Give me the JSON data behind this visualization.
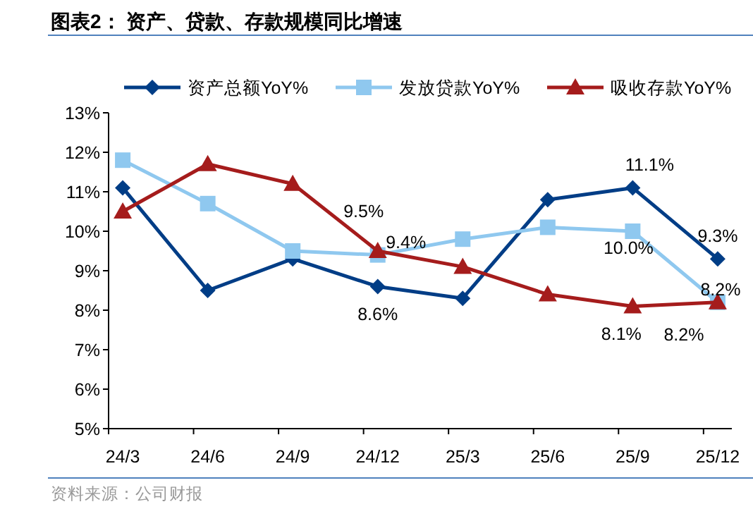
{
  "chart_data": {
    "type": "line",
    "title": "图表2：  资产、贷款、存款规模同比增速",
    "categories": [
      "24/3",
      "24/6",
      "24/9",
      "24/12",
      "25/3",
      "25/6",
      "25/9",
      "25/12"
    ],
    "series": [
      {
        "name": "资产总额YoY%",
        "color": "#003d86",
        "marker": "diamond",
        "values": [
          11.1,
          8.5,
          9.3,
          8.6,
          8.3,
          10.8,
          11.1,
          9.3
        ],
        "value_labels": [
          null,
          null,
          null,
          "8.6%",
          null,
          null,
          "11.1%",
          "9.3%"
        ]
      },
      {
        "name": "发放贷款YoY%",
        "color": "#8fc8ef",
        "marker": "square",
        "values": [
          11.8,
          10.7,
          9.5,
          9.4,
          9.8,
          10.1,
          10.0,
          8.2
        ],
        "value_labels": [
          null,
          null,
          null,
          "9.4%",
          null,
          null,
          "10.0%",
          "8.2%"
        ]
      },
      {
        "name": "吸收存款YoY%",
        "color": "#a51c1c",
        "marker": "triangle",
        "values": [
          10.5,
          11.7,
          11.2,
          9.5,
          9.1,
          8.4,
          8.1,
          8.2
        ],
        "value_labels": [
          null,
          null,
          null,
          "9.5%",
          null,
          null,
          "8.1%",
          "8.2%"
        ]
      }
    ],
    "ylim": [
      5,
      13
    ],
    "yticks": [
      {
        "value": 5,
        "label": "5%"
      },
      {
        "value": 6,
        "label": "6%"
      },
      {
        "value": 7,
        "label": "7%"
      },
      {
        "value": 8,
        "label": "8%"
      },
      {
        "value": 9,
        "label": "9%"
      },
      {
        "value": 10,
        "label": "10%"
      },
      {
        "value": 11,
        "label": "11%"
      },
      {
        "value": 12,
        "label": "12%"
      },
      {
        "value": 13,
        "label": "13%"
      }
    ],
    "legend": "top",
    "grid": false,
    "annotations": [
      "资料来源：公司财报"
    ]
  }
}
